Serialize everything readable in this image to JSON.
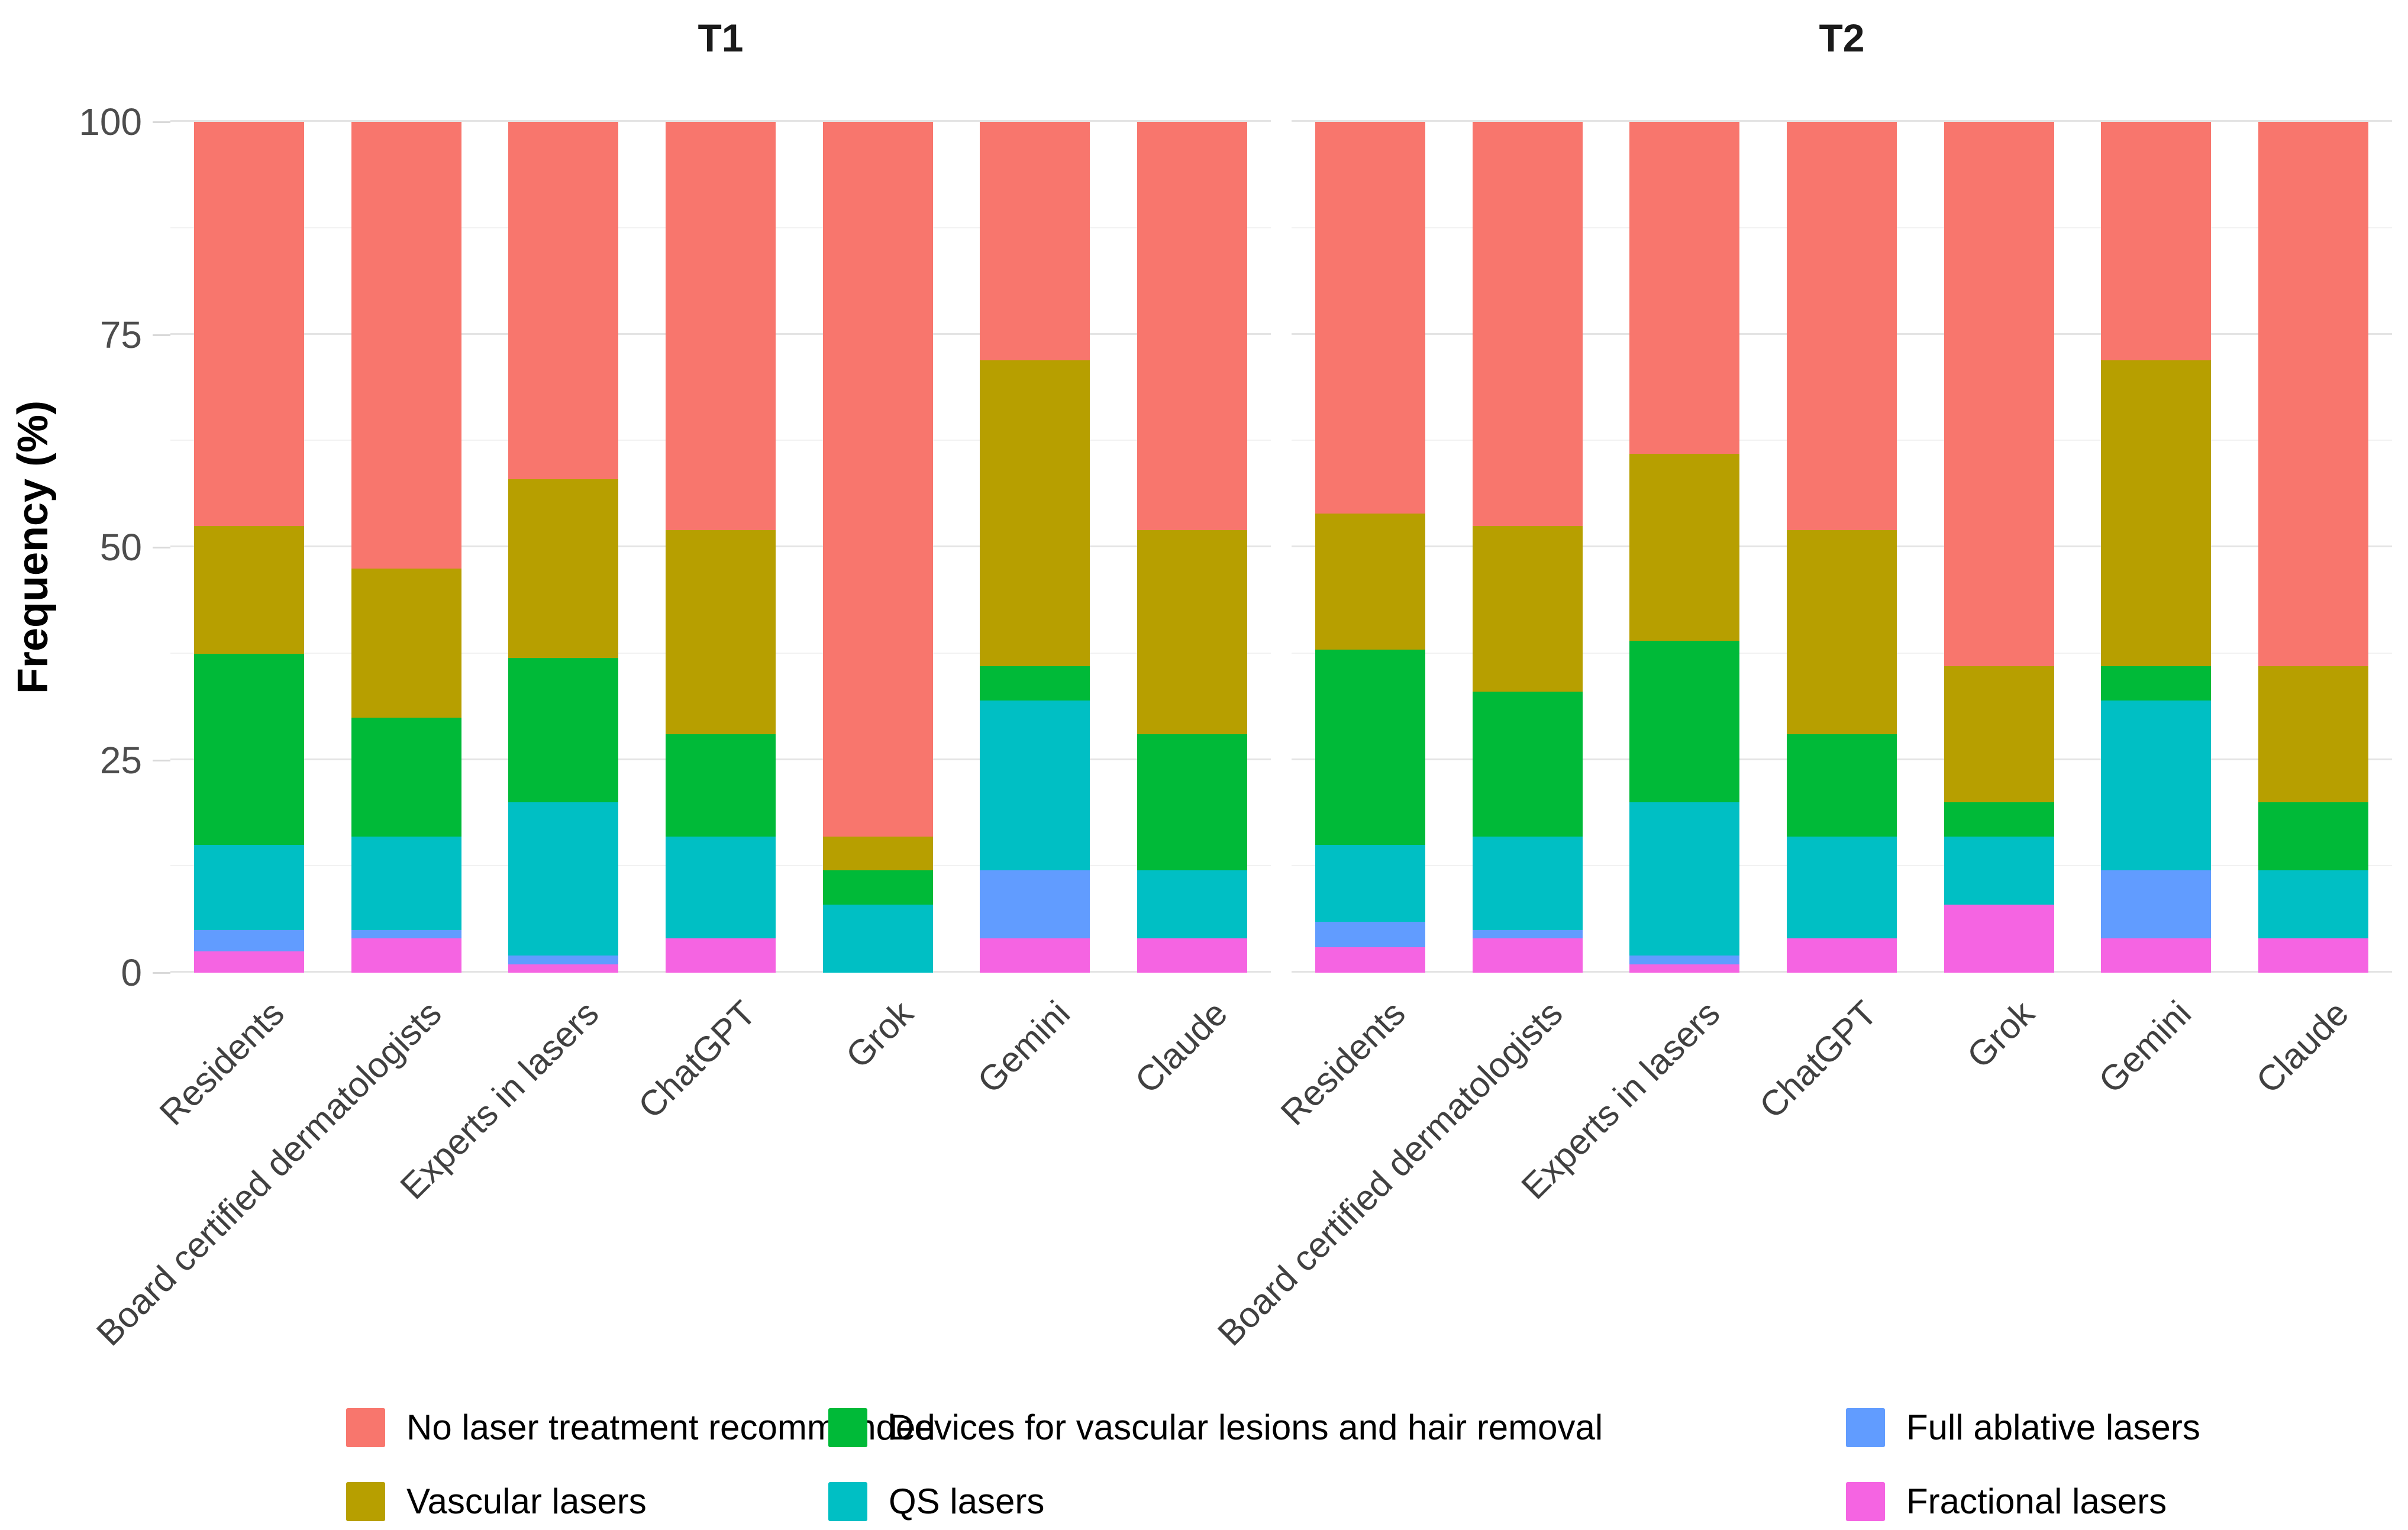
{
  "chart_data": {
    "type": "bar",
    "stacked": true,
    "percent": true,
    "title": "",
    "xlabel": "",
    "ylabel": "Frequency (%)",
    "ylim": [
      0,
      100
    ],
    "yticks": [
      0,
      25,
      50,
      75,
      100
    ],
    "minor_gridlines": [
      12.5,
      37.5,
      62.5,
      87.5
    ],
    "grid": true,
    "legend_position": "bottom",
    "categories": [
      "Residents",
      "Board certified dermatologists",
      "Experts in lasers",
      "ChatGPT",
      "Grok",
      "Gemini",
      "Claude"
    ],
    "stack_order_bottom_to_top": [
      "fractional",
      "full_ablative",
      "qs",
      "devices",
      "vascular",
      "none"
    ],
    "series_meta": {
      "none": {
        "label": "No laser treatment recommended",
        "color": "#F8766D"
      },
      "vascular": {
        "label": "Vascular lasers",
        "color": "#B79F00"
      },
      "devices": {
        "label": "Devices for vascular lesions and hair removal",
        "color": "#00BA38"
      },
      "qs": {
        "label": "QS lasers",
        "color": "#00BFC4"
      },
      "full_ablative": {
        "label": "Full ablative lasers",
        "color": "#619CFF"
      },
      "fractional": {
        "label": "Fractional lasers",
        "color": "#F564E2"
      }
    },
    "legend_columns": [
      [
        "none",
        "vascular"
      ],
      [
        "devices",
        "qs"
      ],
      [
        "full_ablative",
        "fractional"
      ]
    ],
    "facets": [
      {
        "title": "T1",
        "values": {
          "none": [
            47.5,
            52.5,
            42,
            48,
            84,
            28,
            48
          ],
          "vascular": [
            15,
            17.5,
            21,
            24,
            4,
            36,
            24
          ],
          "devices": [
            22.5,
            14,
            17,
            12,
            4,
            4,
            16
          ],
          "qs": [
            10,
            11,
            18,
            12,
            8,
            20,
            8
          ],
          "full_ablative": [
            2.5,
            1,
            1,
            0,
            0,
            8,
            0
          ],
          "fractional": [
            2.5,
            4,
            1,
            4,
            0,
            4,
            4
          ]
        }
      },
      {
        "title": "T2",
        "values": {
          "none": [
            46,
            47.5,
            39,
            48,
            64,
            28,
            64
          ],
          "vascular": [
            16,
            19.5,
            22,
            24,
            16,
            36,
            16
          ],
          "devices": [
            23,
            17,
            19,
            12,
            4,
            4,
            8
          ],
          "qs": [
            9,
            11,
            18,
            12,
            8,
            20,
            8
          ],
          "full_ablative": [
            3,
            1,
            1,
            0,
            0,
            8,
            0
          ],
          "fractional": [
            3,
            4,
            1,
            4,
            8,
            4,
            4
          ]
        }
      }
    ]
  }
}
